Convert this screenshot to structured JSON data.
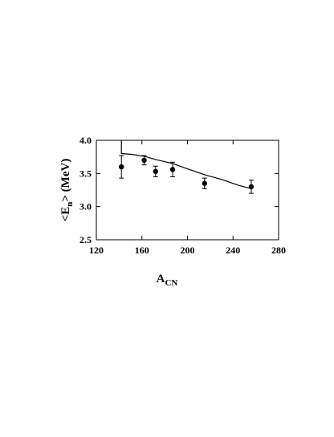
{
  "chart_data": {
    "type": "scatter",
    "xlabel_main": "A",
    "xlabel_sub": "CN",
    "ylabel_main": "<E",
    "ylabel_sub": "n",
    "ylabel_tail": "> (MeV)",
    "xlim": [
      120,
      280
    ],
    "ylim": [
      2.5,
      4.0
    ],
    "xticks": [
      120,
      160,
      200,
      240,
      280
    ],
    "yticks": [
      2.5,
      3.0,
      3.5,
      4.0
    ],
    "xtick_labels": [
      "120",
      "160",
      "200",
      "240",
      "280"
    ],
    "ytick_labels": [
      "2.5",
      "3.0",
      "3.5",
      "4.0"
    ],
    "grid": false,
    "series": [
      {
        "kind": "points",
        "marker": "filled-circle",
        "color": "#000000",
        "points": [
          {
            "x": 142,
            "y": 3.6,
            "err_low": 0.17,
            "err_high": 0.17
          },
          {
            "x": 162,
            "y": 3.7,
            "err_low": 0.07,
            "err_high": 0.07
          },
          {
            "x": 172,
            "y": 3.53,
            "err_low": 0.08,
            "err_high": 0.08
          },
          {
            "x": 187,
            "y": 3.56,
            "err_low": 0.11,
            "err_high": 0.11
          },
          {
            "x": 215,
            "y": 3.35,
            "err_low": 0.08,
            "err_high": 0.08
          },
          {
            "x": 256,
            "y": 3.3,
            "err_low": 0.1,
            "err_high": 0.1
          }
        ]
      },
      {
        "kind": "line",
        "color": "#000000",
        "points": [
          {
            "x": 142,
            "y": 3.8
          },
          {
            "x": 150,
            "y": 3.79
          },
          {
            "x": 162,
            "y": 3.76
          },
          {
            "x": 172,
            "y": 3.71
          },
          {
            "x": 187,
            "y": 3.65
          },
          {
            "x": 200,
            "y": 3.57
          },
          {
            "x": 215,
            "y": 3.48
          },
          {
            "x": 230,
            "y": 3.41
          },
          {
            "x": 245,
            "y": 3.32
          },
          {
            "x": 256,
            "y": 3.27
          }
        ]
      }
    ]
  }
}
